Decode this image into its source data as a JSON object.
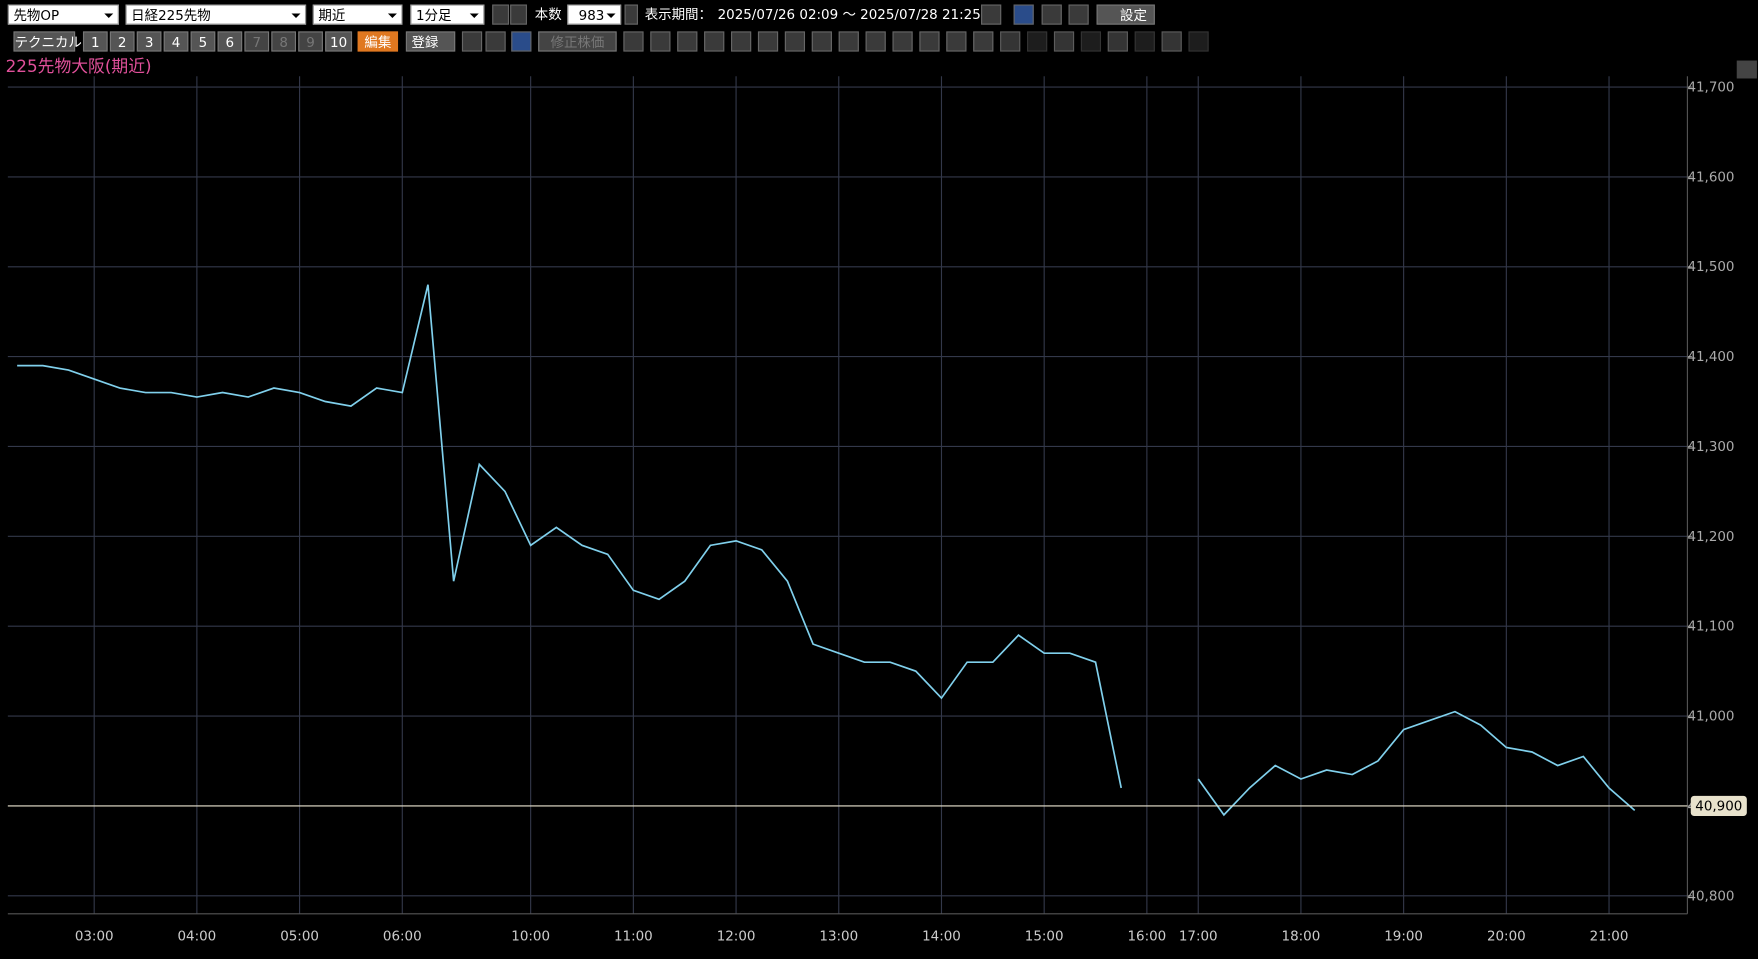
{
  "toolbar": {
    "selects": [
      "先物OP",
      "日経225先物",
      "期近",
      "1分足"
    ],
    "count_label": "本数",
    "count": 983,
    "period_label": "表示期間：",
    "period": "2025/07/26 02:09 ～ 2025/07/28 21:25",
    "settings": "設定",
    "technical": "テクニカル",
    "slots": [
      1,
      2,
      3,
      4,
      5,
      6,
      7,
      8,
      9,
      10
    ],
    "edit": "編集",
    "register": "登録",
    "adjusted": "修正株価"
  },
  "chart_data": {
    "type": "line",
    "title": "225先物大阪(期近)",
    "categories": [
      null,
      null,
      null,
      "03:00",
      null,
      null,
      null,
      "04:00",
      null,
      null,
      null,
      "05:00",
      null,
      null,
      null,
      "06:00",
      null,
      null,
      null,
      null,
      "10:00",
      null,
      null,
      null,
      "11:00",
      null,
      null,
      null,
      "12:00",
      null,
      null,
      null,
      "13:00",
      null,
      null,
      null,
      "14:00",
      null,
      null,
      null,
      "15:00",
      null,
      null,
      null,
      "16:00",
      null,
      "17:00",
      null,
      null,
      null,
      "18:00",
      null,
      null,
      null,
      "19:00",
      null,
      null,
      null,
      "20:00",
      null,
      null,
      null,
      "21:00",
      null
    ],
    "series": [
      {
        "color": "#80d0ec",
        "values": [
          41390,
          41390,
          41385,
          41375,
          41365,
          41360,
          41360,
          41355,
          41360,
          41355,
          41365,
          41360,
          41350,
          41345,
          41365,
          41360,
          41480,
          41150,
          41280,
          41250,
          41190,
          41210,
          41190,
          41180,
          41140,
          41130,
          41150,
          41190,
          41195,
          41185,
          41150,
          41080,
          41070,
          41060,
          41060,
          41050,
          41020,
          41060,
          41060,
          41090,
          41070,
          41070,
          41060,
          40920,
          null,
          null,
          40930,
          40890,
          40920,
          40945,
          40930,
          40940,
          40935,
          40950,
          40985,
          40995,
          41005,
          40990,
          40965,
          40960,
          40945,
          40955,
          40920,
          40895
        ]
      }
    ],
    "ylim": [
      40780,
      41712
    ],
    "yticks": [
      {
        "value": 40800,
        "label": "40,800"
      },
      {
        "value": 40900,
        "label": "40,900"
      },
      {
        "value": 41000,
        "label": "41,000"
      },
      {
        "value": 41100,
        "label": "41,100"
      },
      {
        "value": 41200,
        "label": "41,200"
      },
      {
        "value": 41300,
        "label": "41,300"
      },
      {
        "value": 41400,
        "label": "41,400"
      },
      {
        "value": 41500,
        "label": "41,500"
      },
      {
        "value": 41600,
        "label": "41,600"
      },
      {
        "value": 41700,
        "label": "41,700"
      }
    ],
    "grid": true,
    "last_price": {
      "value": 40900,
      "label": "40,900"
    },
    "last_price_color": "#e8e2cc"
  }
}
